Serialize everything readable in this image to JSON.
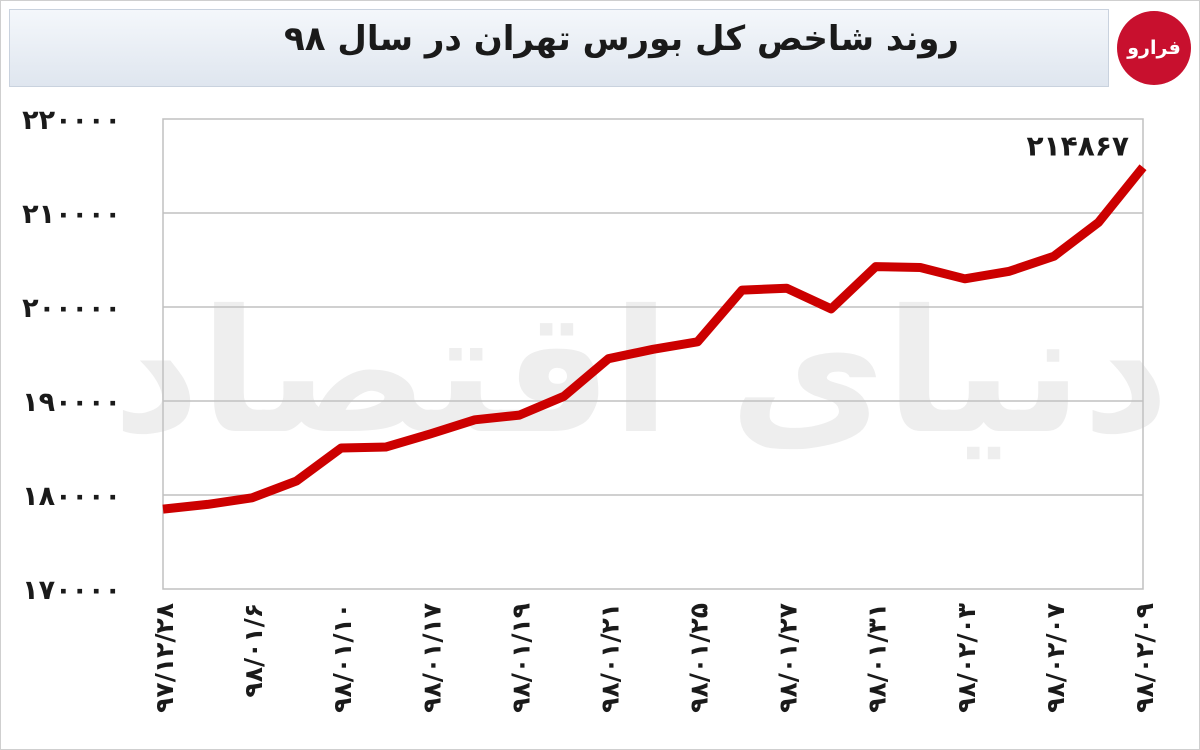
{
  "header": {
    "title": "روند شاخص کل بورس تهران در سال ۹۸"
  },
  "logo": {
    "text": "فرارو"
  },
  "watermark": {
    "text": "دنیای اقتصاد"
  },
  "colors": {
    "line": "#cc0000",
    "grid": "#c0c0c0",
    "axis_text": "#1a1a1a",
    "logo_bg": "#c8102e"
  },
  "chart_data": {
    "type": "line",
    "title": "روند شاخص کل بورس تهران در سال ۹۸",
    "xlabel": "",
    "ylabel": "",
    "ylim": [
      170000,
      220000
    ],
    "yticks": [
      170000,
      180000,
      190000,
      200000,
      210000,
      220000
    ],
    "ytick_labels": [
      "۱۷۰۰۰۰",
      "۱۸۰۰۰۰",
      "۱۹۰۰۰۰",
      "۲۰۰۰۰۰",
      "۲۱۰۰۰۰",
      "۲۲۰۰۰۰"
    ],
    "xtick_labels": [
      "۹۷/۱۲/۲۸",
      "۹۸/۰۱/۶",
      "۹۸/۰۱/۱۰",
      "۹۸/۰۱/۱۷",
      "۹۸/۰۱/۱۹",
      "۹۸/۰۱/۲۱",
      "۹۸/۰۱/۲۵",
      "۹۸/۰۱/۲۷",
      "۹۸/۰۱/۳۱",
      "۹۸/۰۲/۰۳",
      "۹۸/۰۲/۰۷",
      "۹۸/۰۲/۰۹"
    ],
    "grid": true,
    "legend": "none",
    "series": [
      {
        "name": "",
        "x": [
          0,
          0.5,
          1,
          1.5,
          2,
          2.5,
          3,
          3.5,
          4,
          4.5,
          5,
          5.5,
          6,
          6.5,
          7,
          7.5,
          8,
          8.5,
          9,
          9.5,
          10,
          10.5,
          11
        ],
        "values": [
          178500,
          179000,
          179700,
          181500,
          185000,
          185100,
          186500,
          188000,
          188500,
          190500,
          194500,
          195500,
          196300,
          201800,
          202000,
          199800,
          204300,
          204200,
          203000,
          203800,
          205400,
          209000,
          214867
        ]
      }
    ],
    "annotations": [
      {
        "text": "۲۱۴۸۶۷",
        "series_index": 0,
        "point_index": 22
      }
    ]
  }
}
